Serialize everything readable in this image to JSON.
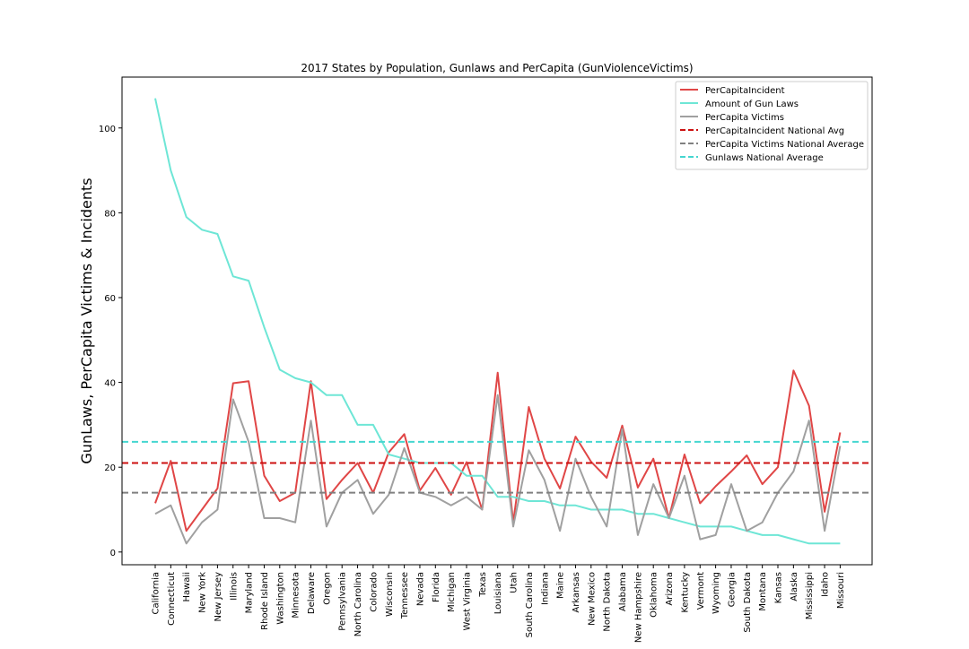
{
  "chart_data": {
    "type": "line",
    "title": "2017 States by Population, Gunlaws and PerCapita (GunViolenceVictims)",
    "xlabel": "",
    "ylabel": "GunLaws, PerCapita Victims & Incidents",
    "ylim": [
      -3,
      112
    ],
    "yticks": [
      0,
      20,
      40,
      60,
      80,
      100
    ],
    "grid": false,
    "legend_position": "top-right",
    "categories": [
      "California",
      "Connecticut",
      "Hawaii",
      "New York",
      "New Jersey",
      "Illinois",
      "Maryland",
      "Rhode Island",
      "Washington",
      "Minnesota",
      "Delaware",
      "Oregon",
      "Pennsylvania",
      "North Carolina",
      "Colorado",
      "Wisconsin",
      "Tennessee",
      "Nevada",
      "Florida",
      "Michigan",
      "West Virginia",
      "Texas",
      "Louisiana",
      "Utah",
      "South Carolina",
      "Indiana",
      "Maine",
      "Arkansas",
      "New Mexico",
      "North Dakota",
      "Alabama",
      "New Hampshire",
      "Oklahoma",
      "Arizona",
      "Kentucky",
      "Vermont",
      "Wyoming",
      "Georgia",
      "South Dakota",
      "Montana",
      "Kansas",
      "Alaska",
      "Mississippi",
      "Idaho",
      "Missouri"
    ],
    "series": [
      {
        "name": "PerCapitaIncident",
        "color": "#e04646",
        "style": "solid",
        "values": [
          11.5,
          21.5,
          5,
          10,
          15,
          39.8,
          40.3,
          18,
          12,
          14,
          40.3,
          12.5,
          17,
          21,
          14,
          23.5,
          27.8,
          14.5,
          19.8,
          13.5,
          21.2,
          10,
          42.3,
          7,
          34.2,
          22,
          15,
          27.2,
          21.3,
          17.5,
          29.8,
          15.2,
          22,
          8,
          23,
          11.5,
          15.5,
          19,
          22.8,
          16,
          20,
          42.8,
          34.5,
          9.5,
          28.2
        ]
      },
      {
        "name": "Amount of Gun Laws",
        "color": "#6ee6d6",
        "style": "solid",
        "values": [
          107,
          90,
          79,
          76,
          75,
          65,
          64,
          53,
          43,
          41,
          40,
          37,
          37,
          30,
          30,
          23,
          22,
          21,
          21,
          21,
          18,
          18,
          13,
          13,
          12,
          12,
          11,
          11,
          10,
          10,
          10,
          9,
          9,
          8,
          7,
          6,
          6,
          6,
          5,
          4,
          4,
          3,
          2,
          2,
          2
        ]
      },
      {
        "name": "PerCapita Victims",
        "color": "#a0a0a0",
        "style": "solid",
        "values": [
          9,
          11,
          2,
          7,
          10,
          36,
          26,
          8,
          8,
          7,
          31,
          6,
          14,
          17,
          9,
          13.5,
          24.5,
          14,
          13,
          11,
          13,
          10,
          37,
          6,
          24,
          17,
          5,
          22,
          13,
          6,
          29,
          4,
          16,
          8,
          18,
          3,
          4,
          16,
          5,
          7,
          14,
          19,
          31,
          5,
          25
        ]
      },
      {
        "name": "PerCapitaIncident National Avg",
        "color": "#cc1111",
        "style": "dashed",
        "constant": 21
      },
      {
        "name": "PerCapita Victims National Average",
        "color": "#808080",
        "style": "dashed",
        "constant": 14
      },
      {
        "name": "Gunlaws National Average",
        "color": "#45d6d0",
        "style": "dashed",
        "constant": 26
      }
    ]
  }
}
